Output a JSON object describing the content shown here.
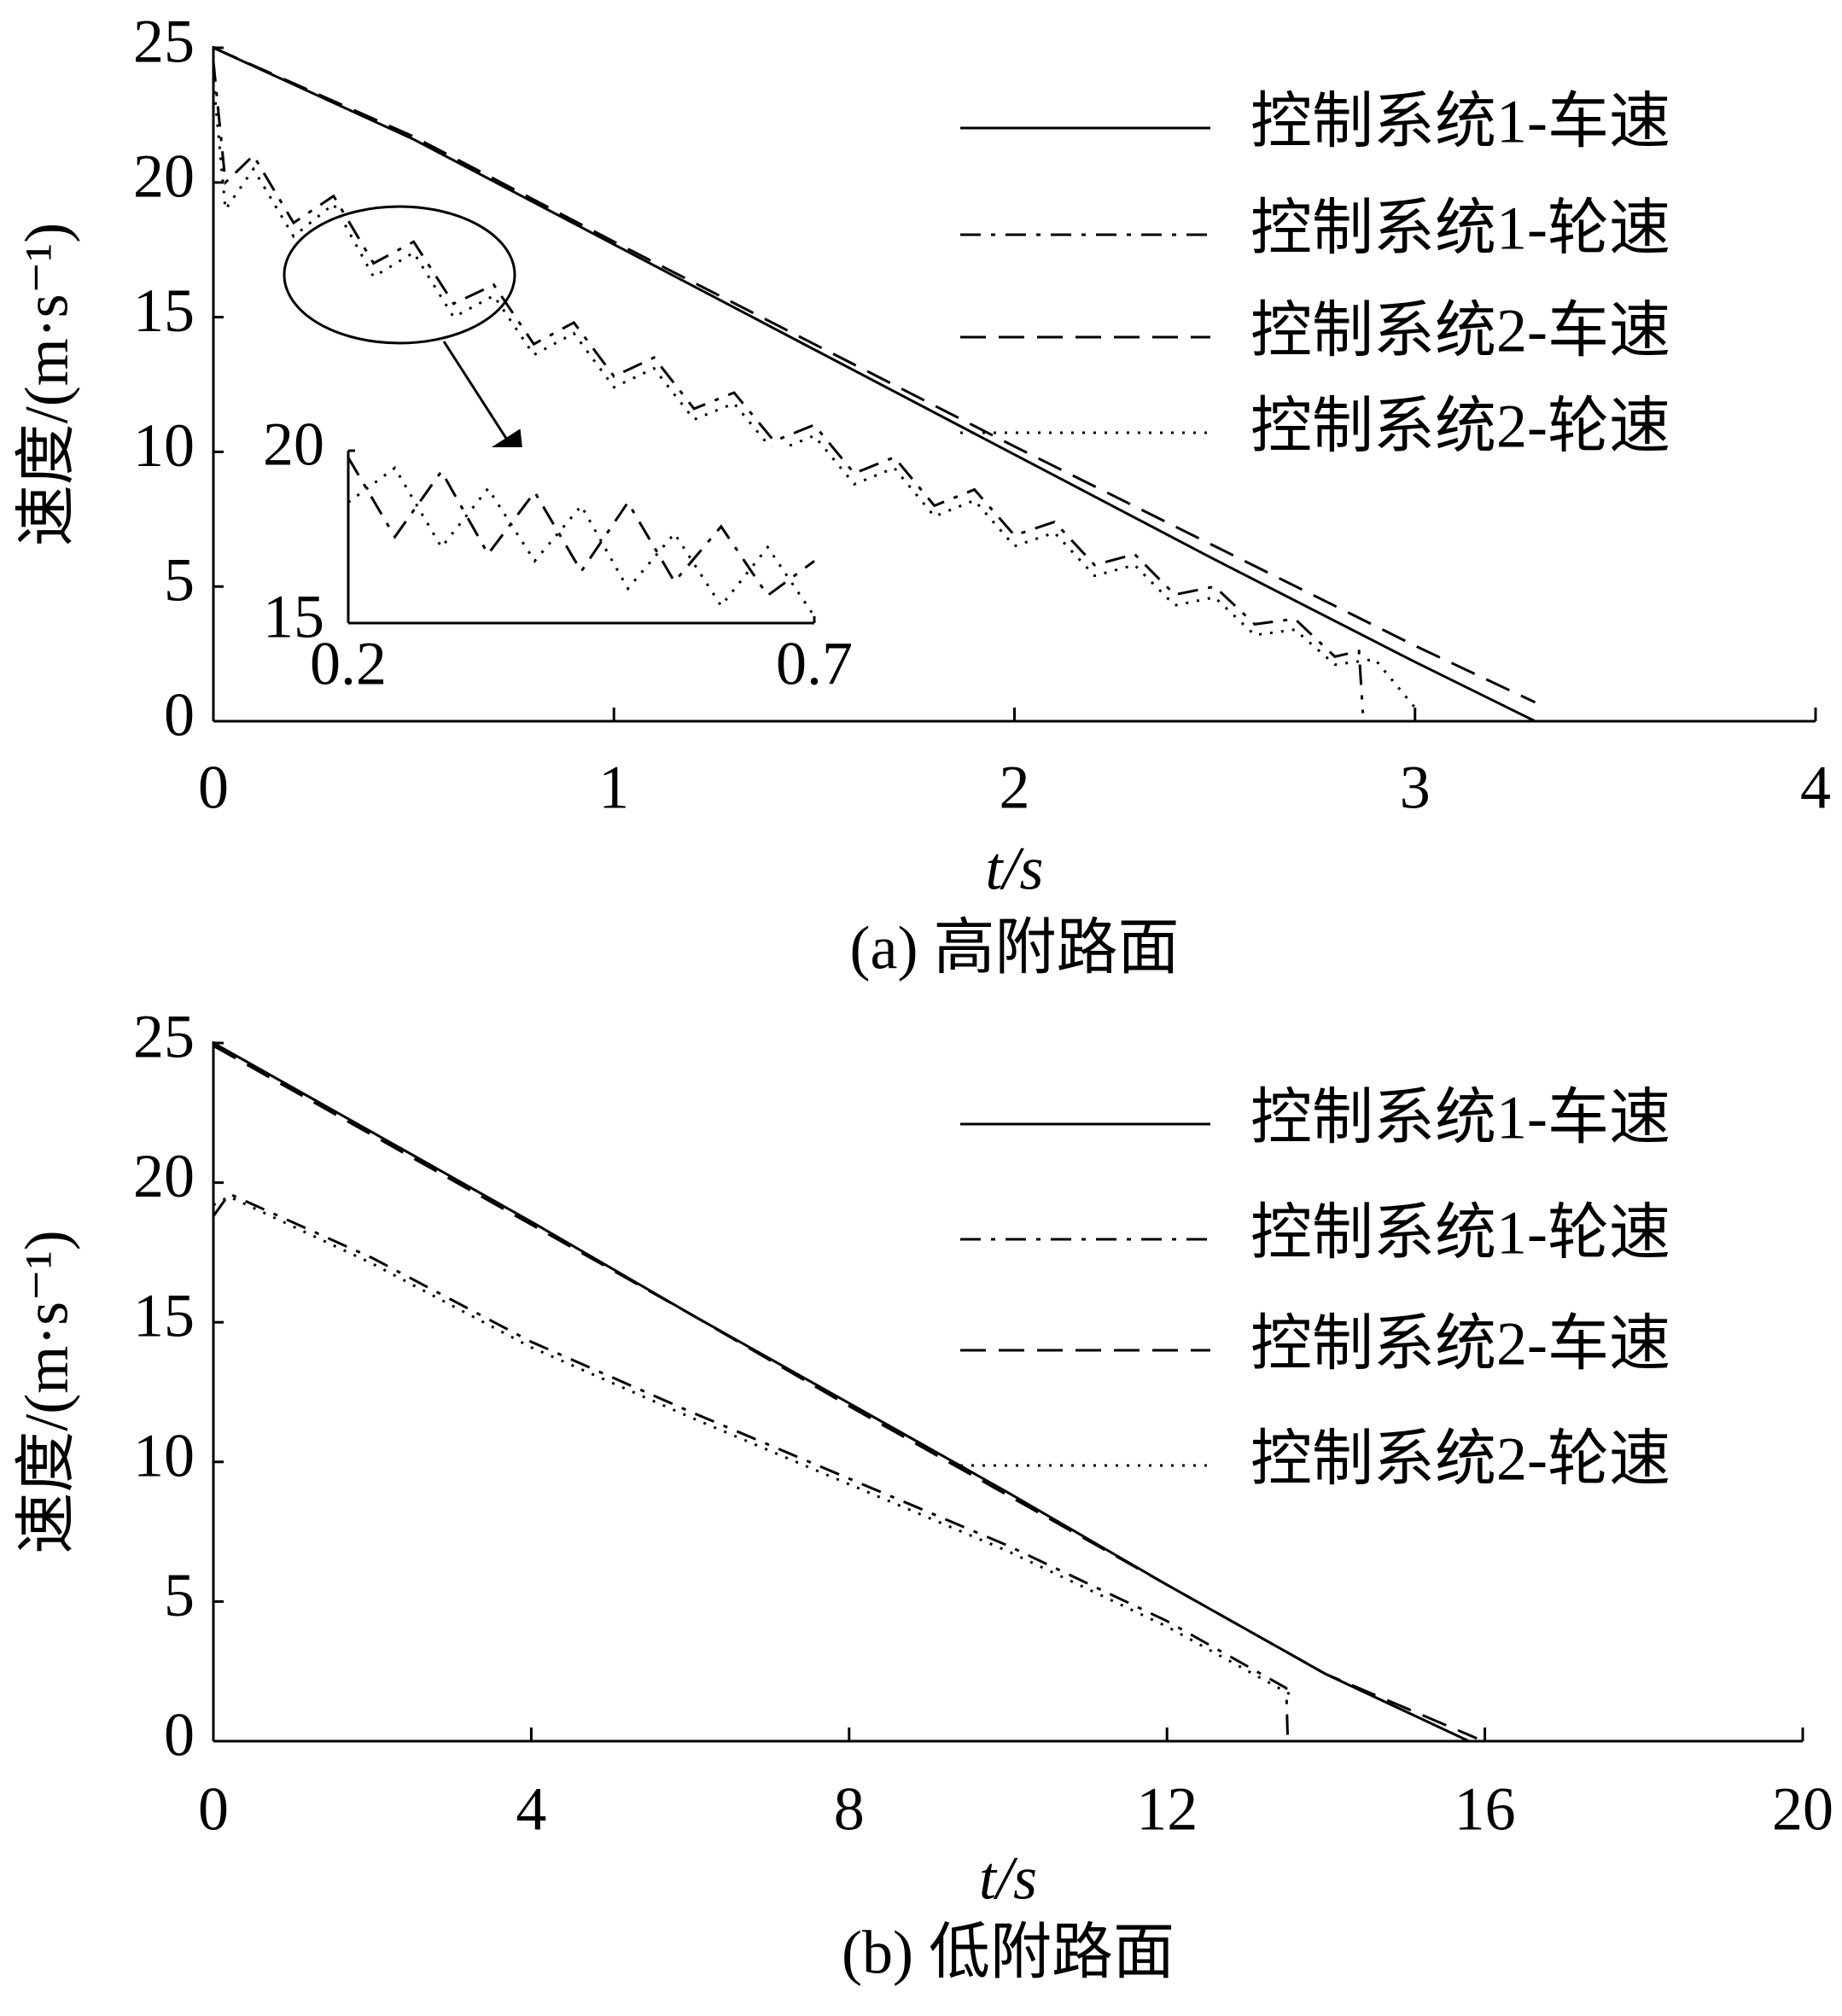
{
  "chart_data": [
    {
      "type": "line",
      "caption": "(a) 高附路面",
      "x_label": "t/s",
      "y_label": "速度/(m·s⁻¹)",
      "xlim": [
        0,
        4
      ],
      "ylim": [
        0,
        25
      ],
      "xticks": [
        0,
        1,
        2,
        3,
        4
      ],
      "yticks": [
        0,
        5,
        10,
        15,
        20,
        25
      ],
      "grid": false,
      "series": [
        {
          "name": "控制系统1-车速",
          "color": "#000000",
          "dash": "solid",
          "x": [
            0,
            0.5,
            1,
            1.5,
            2,
            2.5,
            3,
            3.3
          ],
          "values": [
            25,
            21.6,
            17.7,
            13.8,
            9.9,
            6.0,
            2.2,
            0
          ]
        },
        {
          "name": "控制系统1-轮速",
          "color": "#000000",
          "dash": "dashdot",
          "x": [
            0,
            0.03,
            0.1,
            0.2,
            0.3,
            0.4,
            0.5,
            0.6,
            0.7,
            0.8,
            0.9,
            1.0,
            1.1,
            1.2,
            1.3,
            1.4,
            1.5,
            1.6,
            1.7,
            1.8,
            1.9,
            2.0,
            2.1,
            2.2,
            2.3,
            2.4,
            2.5,
            2.6,
            2.7,
            2.8,
            2.86,
            2.87
          ],
          "values": [
            24.5,
            20,
            21,
            18.5,
            19.5,
            17,
            17.8,
            15.5,
            16.2,
            14,
            14.8,
            12.8,
            13.5,
            11.6,
            12.2,
            10.4,
            11,
            9.2,
            9.8,
            8,
            8.6,
            6.9,
            7.4,
            5.8,
            6.2,
            4.7,
            5,
            3.6,
            3.8,
            2.4,
            2.6,
            0.3
          ]
        },
        {
          "name": "控制系统2-车速",
          "color": "#000000",
          "dash": "dashed",
          "x": [
            0,
            0.5,
            1,
            1.5,
            2,
            2.5,
            3,
            3.3
          ],
          "values": [
            25,
            21.7,
            17.8,
            14.0,
            10.2,
            6.5,
            2.8,
            0.7
          ]
        },
        {
          "name": "控制系统2-轮速",
          "color": "#000000",
          "dash": "dotted",
          "x": [
            0,
            0.03,
            0.1,
            0.2,
            0.3,
            0.4,
            0.5,
            0.6,
            0.7,
            0.8,
            0.9,
            1.0,
            1.1,
            1.2,
            1.3,
            1.4,
            1.5,
            1.6,
            1.7,
            1.8,
            1.9,
            2.0,
            2.1,
            2.2,
            2.3,
            2.4,
            2.5,
            2.6,
            2.7,
            2.8,
            2.9,
            3.0
          ],
          "values": [
            23.8,
            19,
            20.5,
            18,
            19.2,
            16.5,
            17.4,
            15,
            15.8,
            13.6,
            14.4,
            12.4,
            13.1,
            11.2,
            11.8,
            10,
            10.6,
            8.8,
            9.4,
            7.6,
            8.2,
            6.5,
            7,
            5.4,
            5.8,
            4.3,
            4.6,
            3.2,
            3.4,
            2.1,
            2.3,
            0.5
          ]
        }
      ],
      "inset": {
        "xlim": [
          0.2,
          0.7
        ],
        "ylim": [
          15,
          20
        ],
        "xticks": [
          0.2,
          0.7
        ],
        "yticks": [
          15,
          20
        ],
        "series": [
          {
            "color": "#000000",
            "dash": "dashdot",
            "x": [
              0.2,
              0.25,
              0.3,
              0.35,
              0.4,
              0.45,
              0.5,
              0.55,
              0.6,
              0.65,
              0.7
            ],
            "values": [
              19.8,
              17.5,
              19.4,
              17,
              18.8,
              16.5,
              18.5,
              16.2,
              17.8,
              15.8,
              16.8
            ]
          },
          {
            "color": "#000000",
            "dash": "dotted",
            "x": [
              0.2,
              0.25,
              0.3,
              0.35,
              0.4,
              0.45,
              0.5,
              0.55,
              0.6,
              0.65,
              0.7
            ],
            "values": [
              18.5,
              19.5,
              17.2,
              18.9,
              16.8,
              18.4,
              16,
              17.6,
              15.5,
              17.2,
              15.2
            ]
          }
        ]
      }
    },
    {
      "type": "line",
      "caption": "(b) 低附路面",
      "x_label": "t/s",
      "y_label": "速度/(m·s⁻¹)",
      "xlim": [
        0,
        20
      ],
      "ylim": [
        0,
        25
      ],
      "xticks": [
        0,
        4,
        8,
        12,
        16,
        20
      ],
      "yticks": [
        0,
        5,
        10,
        15,
        20,
        25
      ],
      "grid": false,
      "series": [
        {
          "name": "控制系统1-车速",
          "color": "#000000",
          "dash": "solid",
          "x": [
            0,
            2,
            4,
            6,
            8,
            10,
            12,
            14,
            15.8
          ],
          "values": [
            25,
            21.8,
            18.6,
            15.3,
            12.1,
            8.9,
            5.6,
            2.4,
            0
          ]
        },
        {
          "name": "控制系统1-轮速",
          "color": "#000000",
          "dash": "dashdot",
          "x": [
            0,
            0.2,
            2,
            4,
            6,
            8,
            10,
            12,
            13.5,
            13.52
          ],
          "values": [
            18.8,
            19.6,
            17.3,
            14.3,
            11.8,
            9.4,
            7.0,
            4.3,
            1.9,
            0
          ]
        },
        {
          "name": "控制系统2-车速",
          "color": "#000000",
          "dash": "dashed",
          "x": [
            0,
            2,
            4,
            6,
            8,
            10,
            12,
            14,
            15.9
          ],
          "values": [
            24.9,
            21.7,
            18.5,
            15.3,
            12.0,
            8.8,
            5.6,
            2.4,
            0.1
          ]
        },
        {
          "name": "控制系统2-轮速",
          "color": "#000000",
          "dash": "dotted",
          "x": [
            0,
            0.2,
            2,
            4,
            6,
            8,
            10,
            12,
            13.6
          ],
          "values": [
            19.2,
            19.5,
            17.1,
            14.1,
            11.6,
            9.2,
            6.8,
            4.1,
            1.6
          ]
        }
      ]
    }
  ]
}
